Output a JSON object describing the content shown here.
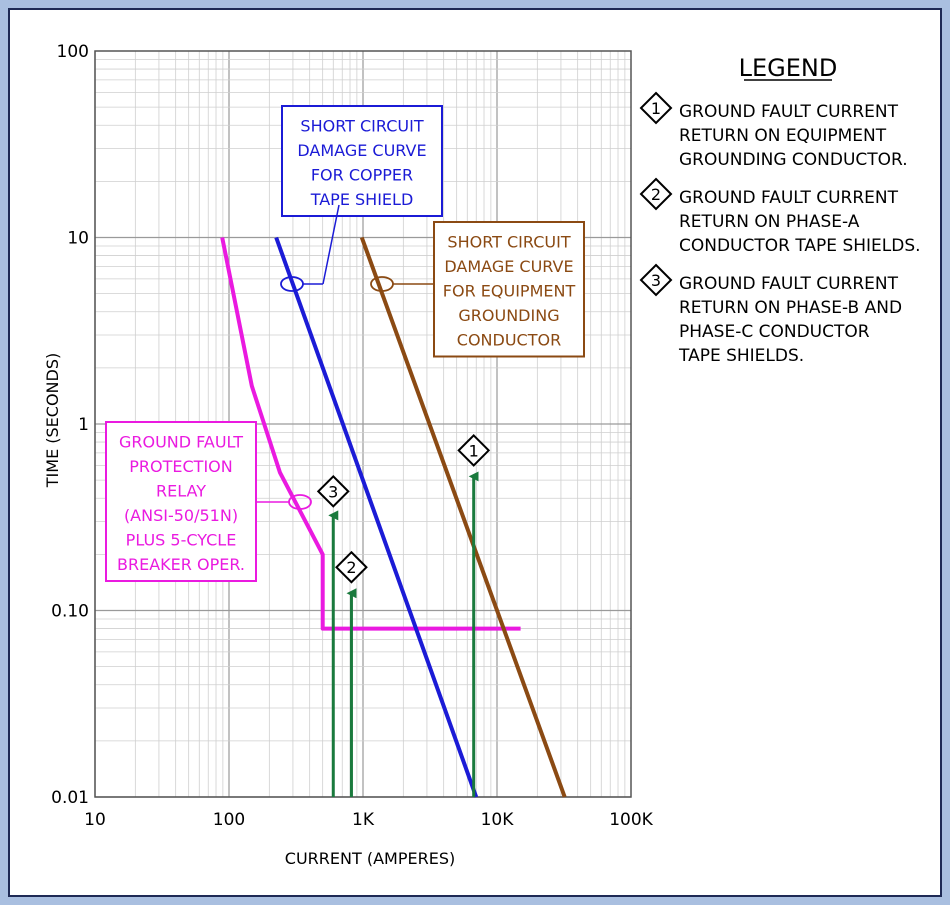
{
  "colors": {
    "frame_outer": "#a9bfe0",
    "frame_inner": "#1e2a55",
    "grid_major": "#9a9a9a",
    "grid_minor": "#cfcfcf",
    "relay": "#ea1ae0",
    "copper": "#1b1bd6",
    "grounding": "#8b4a13",
    "arrow": "#1a7a3d"
  },
  "chart_data": {
    "type": "line",
    "x_scale": "log",
    "y_scale": "log",
    "xlim": [
      10,
      100000
    ],
    "ylim": [
      0.01,
      100
    ],
    "xlabel": "CURRENT (AMPERES)",
    "ylabel": "TIME (SECONDS)",
    "x_ticks": [
      {
        "value": 10,
        "label": "10"
      },
      {
        "value": 100,
        "label": "100"
      },
      {
        "value": 1000,
        "label": "1K"
      },
      {
        "value": 10000,
        "label": "10K"
      },
      {
        "value": 100000,
        "label": "100K"
      }
    ],
    "y_ticks": [
      {
        "value": 100,
        "label": "100"
      },
      {
        "value": 10,
        "label": "10"
      },
      {
        "value": 1,
        "label": "1"
      },
      {
        "value": 0.1,
        "label": "0.10"
      },
      {
        "value": 0.01,
        "label": "0.01"
      }
    ],
    "grid": true,
    "series": [
      {
        "key": "relay",
        "color": "#ea1ae0",
        "label_lines": [
          "GROUND FAULT",
          "PROTECTION",
          "RELAY",
          "(ANSI-50/51N)",
          "PLUS 5-CYCLE",
          "BREAKER OPER."
        ],
        "points": [
          [
            89,
            10
          ],
          [
            148,
            1.6
          ],
          [
            240,
            0.55
          ],
          [
            500,
            0.2
          ],
          [
            500,
            0.08
          ],
          [
            15000,
            0.08
          ]
        ]
      },
      {
        "key": "copper",
        "color": "#1b1bd6",
        "label_lines": [
          "SHORT CIRCUIT",
          "DAMAGE CURVE",
          "FOR COPPER",
          "TAPE SHIELD"
        ],
        "points": [
          [
            225,
            10
          ],
          [
            7000,
            0.01
          ]
        ]
      },
      {
        "key": "grounding",
        "color": "#8b4a13",
        "label_lines": [
          "SHORT CIRCUIT",
          "DAMAGE CURVE",
          "FOR EQUIPMENT",
          "GROUNDING",
          "CONDUCTOR"
        ],
        "points": [
          [
            980,
            10
          ],
          [
            32000,
            0.01
          ]
        ]
      }
    ],
    "markers": [
      {
        "number": "1",
        "x": 6700,
        "y_top": 0.55
      },
      {
        "number": "2",
        "x": 820,
        "y_top": 0.13
      },
      {
        "number": "3",
        "x": 600,
        "y_top": 0.34
      }
    ],
    "legend": {
      "title": "LEGEND",
      "position": "right",
      "items": [
        {
          "number": "1",
          "lines": [
            "GROUND FAULT CURRENT",
            "RETURN ON EQUIPMENT",
            "GROUNDING CONDUCTOR."
          ]
        },
        {
          "number": "2",
          "lines": [
            "GROUND FAULT CURRENT",
            "RETURN ON PHASE-A",
            "CONDUCTOR TAPE SHIELDS."
          ]
        },
        {
          "number": "3",
          "lines": [
            "GROUND FAULT CURRENT",
            "RETURN ON PHASE-B AND",
            "PHASE-C CONDUCTOR",
            "TAPE SHIELDS."
          ]
        }
      ]
    }
  }
}
